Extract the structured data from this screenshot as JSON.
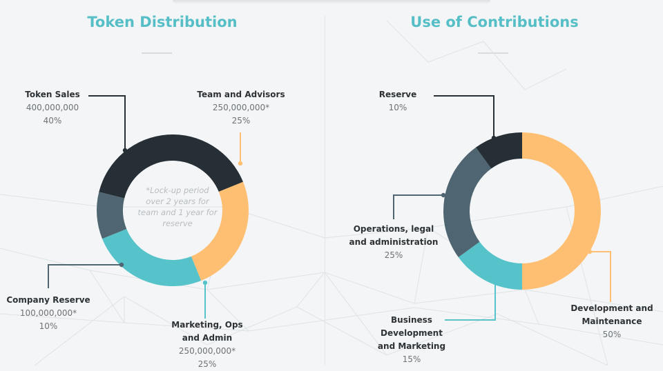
{
  "colors": {
    "dark": "#262f35",
    "slate": "#4f6672",
    "teal": "#55c3c9",
    "orange": "#ffbf73",
    "title": "#56bec6"
  },
  "chart_data": [
    {
      "type": "pie",
      "variant": "donut",
      "title": "Token Distribution",
      "note": "*Lock-up period over 2 years for team and 1 year for reserve",
      "slices": [
        {
          "name": "Token Sales",
          "amount": "400,000,000",
          "percent_label": "40%",
          "value": 40,
          "color": "#262f35"
        },
        {
          "name": "Team and Advisors",
          "amount": "250,000,000*",
          "percent_label": "25%",
          "value": 25,
          "color": "#ffbf73"
        },
        {
          "name": "Marketing, Ops and Admin",
          "amount": "250,000,000*",
          "percent_label": "25%",
          "value": 25,
          "color": "#55c3c9"
        },
        {
          "name": "Company Reserve",
          "amount": "100,000,000*",
          "percent_label": "10%",
          "value": 10,
          "color": "#4f6672"
        }
      ]
    },
    {
      "type": "pie",
      "variant": "donut",
      "title": "Use of Contributions",
      "slices": [
        {
          "name": "Development and Maintenance",
          "percent_label": "50%",
          "value": 50,
          "color": "#ffbf73"
        },
        {
          "name": "Business Development and Marketing",
          "percent_label": "15%",
          "value": 15,
          "color": "#55c3c9"
        },
        {
          "name": "Operations, legal and administration",
          "percent_label": "25%",
          "value": 25,
          "color": "#4f6672"
        },
        {
          "name": "Reserve",
          "percent_label": "10%",
          "value": 10,
          "color": "#262f35"
        }
      ]
    }
  ]
}
